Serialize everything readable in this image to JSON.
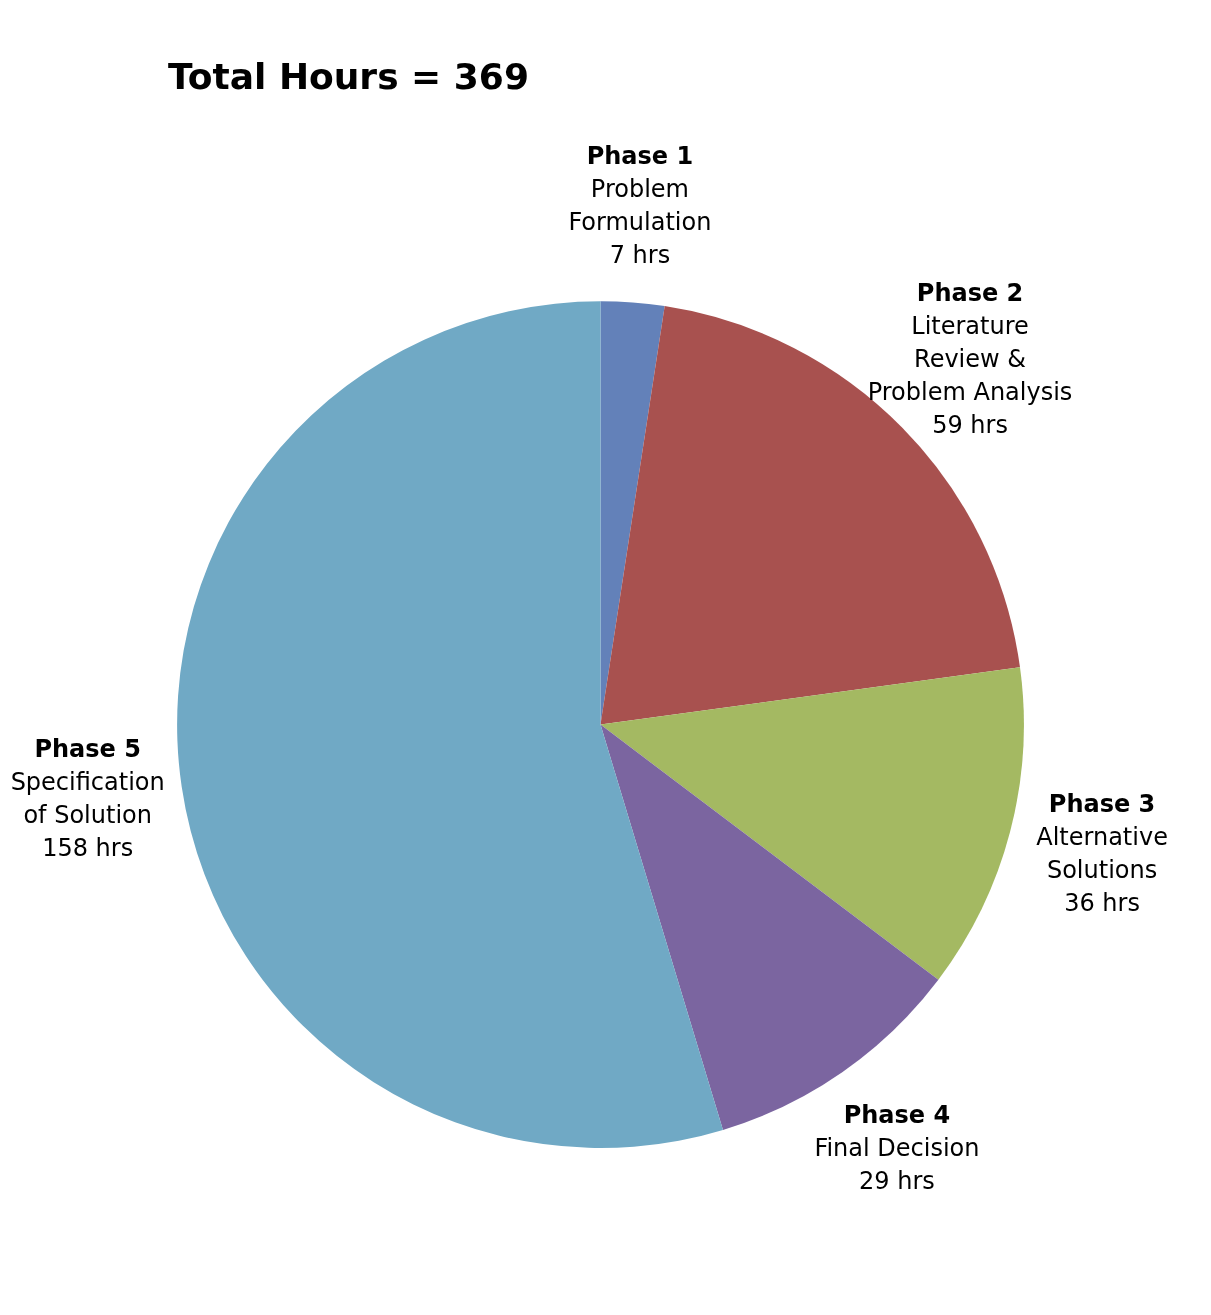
{
  "chart_data": {
    "type": "pie",
    "title": "Total Hours = 369",
    "categories": [
      "Phase 1\nProblem\nFormulation",
      "Phase 2\nLiterature\nReview &\nProblem Analysis",
      "Phase 3\nAlternative\nSolutions",
      "Phase 4\nFinal Decision",
      "Phase 5\nSpecification\nof Solution"
    ],
    "values": [
      7,
      59,
      36,
      29,
      158
    ],
    "value_labels": [
      "7 hrs",
      "59 hrs",
      "36 hrs",
      "29 hrs",
      "158 hrs"
    ],
    "colors": [
      "#6381b9",
      "#a8514f",
      "#a4b962",
      "#7b65a0",
      "#70a9c5"
    ],
    "legend": false
  }
}
